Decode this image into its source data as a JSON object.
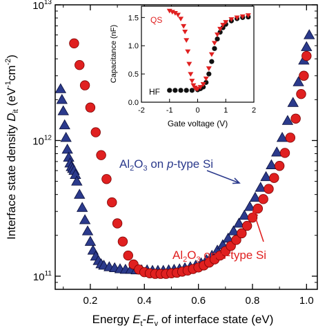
{
  "chart_data": [
    {
      "type": "scatter",
      "xlabel": "Energy Eₜ-Eᵥ of interface state (eV)",
      "ylabel": "Interface state density Dᵢₜ (eV⁻¹cm⁻²)",
      "y_scale": "log",
      "xlim": [
        0.07,
        1.04
      ],
      "ylim": [
        80000000000.0,
        10000000000000.0
      ],
      "x_ticks": [
        "0.2",
        "0.4",
        "0.6",
        "0.8",
        "1.0"
      ],
      "x_tick_values": [
        0.2,
        0.4,
        0.6,
        0.8,
        1.0
      ],
      "y_ticks": [
        "10¹¹",
        "10¹²",
        "10¹³"
      ],
      "y_tick_values": [
        100000000000.0,
        1000000000000.0,
        10000000000000.0
      ],
      "y_tick_text": [
        {
          "base": "10",
          "exp": "11"
        },
        {
          "base": "10",
          "exp": "12"
        },
        {
          "base": "10",
          "exp": "13"
        }
      ],
      "xlabel_parts": {
        "pre": "Energy ",
        "e1": "E",
        "s1": "t",
        "dash": "-",
        "e2": "E",
        "s2": "v",
        "post": " of interface state (eV)"
      },
      "ylabel_parts": {
        "pre": "Interface state density ",
        "d": "D",
        "ds": "it",
        "open": " (eV",
        "e1": "-1",
        "mid": "cm",
        "e2": "-2",
        "close": ")"
      },
      "legend_placement": "annotations with arrows",
      "series": [
        {
          "name": "Al2O3 on p-type Si",
          "label": {
            "t1": "Al",
            "s1": "2",
            "t2": "O",
            "s2": "3",
            "t3": " on ",
            "it": "p",
            "t4": "-type Si"
          },
          "marker": "triangle",
          "color": "#2b3a8c",
          "x": [
            0.09,
            0.095,
            0.1,
            0.105,
            0.11,
            0.115,
            0.12,
            0.125,
            0.13,
            0.135,
            0.14,
            0.145,
            0.15,
            0.16,
            0.17,
            0.18,
            0.19,
            0.2,
            0.21,
            0.22,
            0.23,
            0.24,
            0.25,
            0.27,
            0.29,
            0.31,
            0.33,
            0.35,
            0.37,
            0.39,
            0.41,
            0.43,
            0.45,
            0.47,
            0.49,
            0.51,
            0.53,
            0.55,
            0.57,
            0.59,
            0.61,
            0.63,
            0.65,
            0.67,
            0.69,
            0.71,
            0.73,
            0.75,
            0.77,
            0.79,
            0.81,
            0.83,
            0.85,
            0.87,
            0.89,
            0.91,
            0.93,
            0.95,
            0.97,
            0.99,
            1.0,
            1.01
          ],
          "y": [
            2400000000000.0,
            2000000000000.0,
            1650000000000.0,
            1300000000000.0,
            1050000000000.0,
            860000000000.0,
            750000000000.0,
            680000000000.0,
            640000000000.0,
            620000000000.0,
            600000000000.0,
            560000000000.0,
            500000000000.0,
            400000000000.0,
            320000000000.0,
            260000000000.0,
            215000000000.0,
            180000000000.0,
            155000000000.0,
            140000000000.0,
            130000000000.0,
            123000000000.0,
            120000000000.0,
            117000000000.0,
            115000000000.0,
            113000000000.0,
            112000000000.0,
            112000000000.0,
            111000000000.0,
            111000000000.0,
            111000000000.0,
            110000000000.0,
            110000000000.0,
            110000000000.0,
            111000000000.0,
            112000000000.0,
            113000000000.0,
            115000000000.0,
            117000000000.0,
            120000000000.0,
            125000000000.0,
            132000000000.0,
            142000000000.0,
            155000000000.0,
            170000000000.0,
            190000000000.0,
            215000000000.0,
            245000000000.0,
            280000000000.0,
            325000000000.0,
            380000000000.0,
            450000000000.0,
            540000000000.0,
            660000000000.0,
            820000000000.0,
            1050000000000.0,
            1400000000000.0,
            1900000000000.0,
            2700000000000.0,
            3900000000000.0,
            4900000000000.0,
            6000000000000.0
          ]
        },
        {
          "name": "Al2O3 on n-type Si",
          "label": {
            "t1": "Al",
            "s1": "2",
            "t2": "O",
            "s2": "3",
            "t3": " on ",
            "it": "n",
            "t4": "-type Si"
          },
          "marker": "circle",
          "color": "#e02020",
          "x": [
            0.14,
            0.16,
            0.18,
            0.2,
            0.22,
            0.24,
            0.26,
            0.28,
            0.3,
            0.32,
            0.34,
            0.36,
            0.38,
            0.4,
            0.42,
            0.44,
            0.46,
            0.48,
            0.5,
            0.52,
            0.54,
            0.56,
            0.58,
            0.6,
            0.62,
            0.64,
            0.66,
            0.68,
            0.7,
            0.72,
            0.74,
            0.76,
            0.78,
            0.8,
            0.82,
            0.84,
            0.86,
            0.88,
            0.9,
            0.92,
            0.94,
            0.96,
            0.98,
            0.99,
            1.0
          ],
          "y": [
            5200000000000.0,
            3600000000000.0,
            2550000000000.0,
            1750000000000.0,
            1150000000000.0,
            780000000000.0,
            520000000000.0,
            350000000000.0,
            245000000000.0,
            180000000000.0,
            142000000000.0,
            122000000000.0,
            112000000000.0,
            107000000000.0,
            105000000000.0,
            104000000000.0,
            104000000000.0,
            104000000000.0,
            105000000000.0,
            106000000000.0,
            108000000000.0,
            110000000000.0,
            113000000000.0,
            116000000000.0,
            120000000000.0,
            126000000000.0,
            133000000000.0,
            142000000000.0,
            153000000000.0,
            167000000000.0,
            185000000000.0,
            207000000000.0,
            235000000000.0,
            270000000000.0,
            315000000000.0,
            370000000000.0,
            440000000000.0,
            530000000000.0,
            650000000000.0,
            810000000000.0,
            1050000000000.0,
            1450000000000.0,
            2200000000000.0,
            3000000000000.0,
            4200000000000.0
          ]
        }
      ]
    },
    {
      "type": "line",
      "role": "inset",
      "xlabel": "Gate voltage (V)",
      "ylabel": "Capacitance (nF)",
      "xlim": [
        -2,
        2
      ],
      "ylim": [
        0,
        1.7
      ],
      "x_ticks": [
        "-2",
        "-1",
        "0",
        "1",
        "2"
      ],
      "x_tick_values": [
        -2,
        -1,
        0,
        1,
        2
      ],
      "y_ticks": [
        "0.0",
        "0.5",
        "1.0",
        "1.5"
      ],
      "y_tick_values": [
        0,
        0.5,
        1.0,
        1.5
      ],
      "series": [
        {
          "name": "QS",
          "marker": "triangle-down",
          "color": "#e02020",
          "x": [
            -1.0,
            -0.9,
            -0.8,
            -0.7,
            -0.6,
            -0.5,
            -0.45,
            -0.4,
            -0.35,
            -0.3,
            -0.25,
            -0.2,
            -0.15,
            -0.1,
            -0.05,
            0.0,
            0.1,
            0.2,
            0.3,
            0.4,
            0.5,
            0.6,
            0.7,
            0.8,
            0.9,
            1.0,
            1.2,
            1.4,
            1.6,
            1.8
          ],
          "y": [
            1.62,
            1.6,
            1.58,
            1.55,
            1.48,
            1.35,
            1.25,
            1.1,
            0.9,
            0.68,
            0.5,
            0.38,
            0.3,
            0.26,
            0.24,
            0.24,
            0.27,
            0.32,
            0.42,
            0.6,
            0.85,
            1.05,
            1.2,
            1.3,
            1.37,
            1.42,
            1.47,
            1.5,
            1.52,
            1.54
          ]
        },
        {
          "name": "HF",
          "marker": "circle",
          "color": "#111111",
          "x": [
            -1.0,
            -0.8,
            -0.6,
            -0.4,
            -0.2,
            0.0,
            0.1,
            0.2,
            0.3,
            0.4,
            0.5,
            0.6,
            0.7,
            0.8,
            0.9,
            1.0,
            1.2,
            1.4,
            1.6,
            1.8
          ],
          "y": [
            0.21,
            0.21,
            0.21,
            0.21,
            0.21,
            0.22,
            0.24,
            0.27,
            0.35,
            0.5,
            0.72,
            0.95,
            1.12,
            1.24,
            1.32,
            1.38,
            1.44,
            1.48,
            1.5,
            1.51
          ]
        }
      ]
    }
  ]
}
